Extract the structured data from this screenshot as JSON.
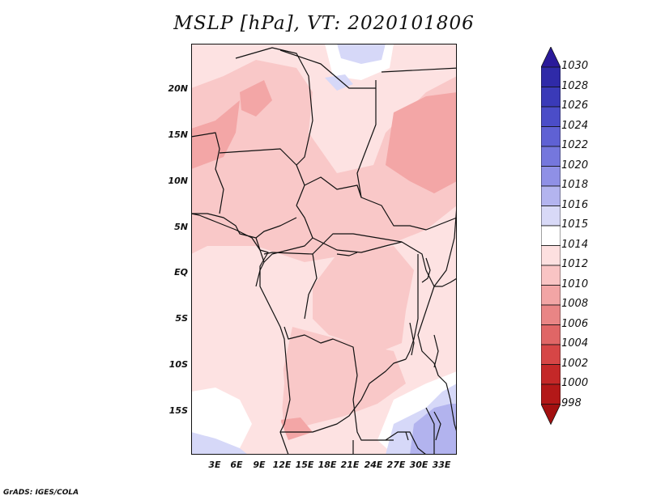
{
  "title": "MSLP [hPa], VT: 2020101806",
  "footer": "GrADS: IGES/COLA",
  "lat_labels": [
    "20N",
    "15N",
    "10N",
    "5N",
    "EQ",
    "5S",
    "10S",
    "15S"
  ],
  "lon_labels": [
    "3E",
    "6E",
    "9E",
    "12E",
    "15E",
    "18E",
    "21E",
    "24E",
    "27E",
    "30E",
    "33E"
  ],
  "colorbar": {
    "labels": [
      "1030",
      "1028",
      "1026",
      "1024",
      "1022",
      "1020",
      "1018",
      "1016",
      "1015",
      "1014",
      "1012",
      "1010",
      "1008",
      "1006",
      "1004",
      "1002",
      "1000",
      "998"
    ],
    "colors": [
      "#2a1a9a",
      "#2f2aa8",
      "#3a3ab8",
      "#4b4dc8",
      "#5f61d4",
      "#7577dd",
      "#8f90e6",
      "#b3b4ef",
      "#d8d9f7",
      "#ffffff",
      "#fde0e0",
      "#f9c4c4",
      "#f2a5a5",
      "#e98585",
      "#e06666",
      "#d64646",
      "#c42828",
      "#b31818",
      "#a31010"
    ]
  },
  "colors": {
    "land_pink_light": "#fde2e2",
    "land_pink": "#f9c8c8",
    "land_pink_dark": "#f3a6a6",
    "blue_light": "#d6d8f8",
    "blue_mid": "#b2b3ee",
    "border": "#111111"
  }
}
